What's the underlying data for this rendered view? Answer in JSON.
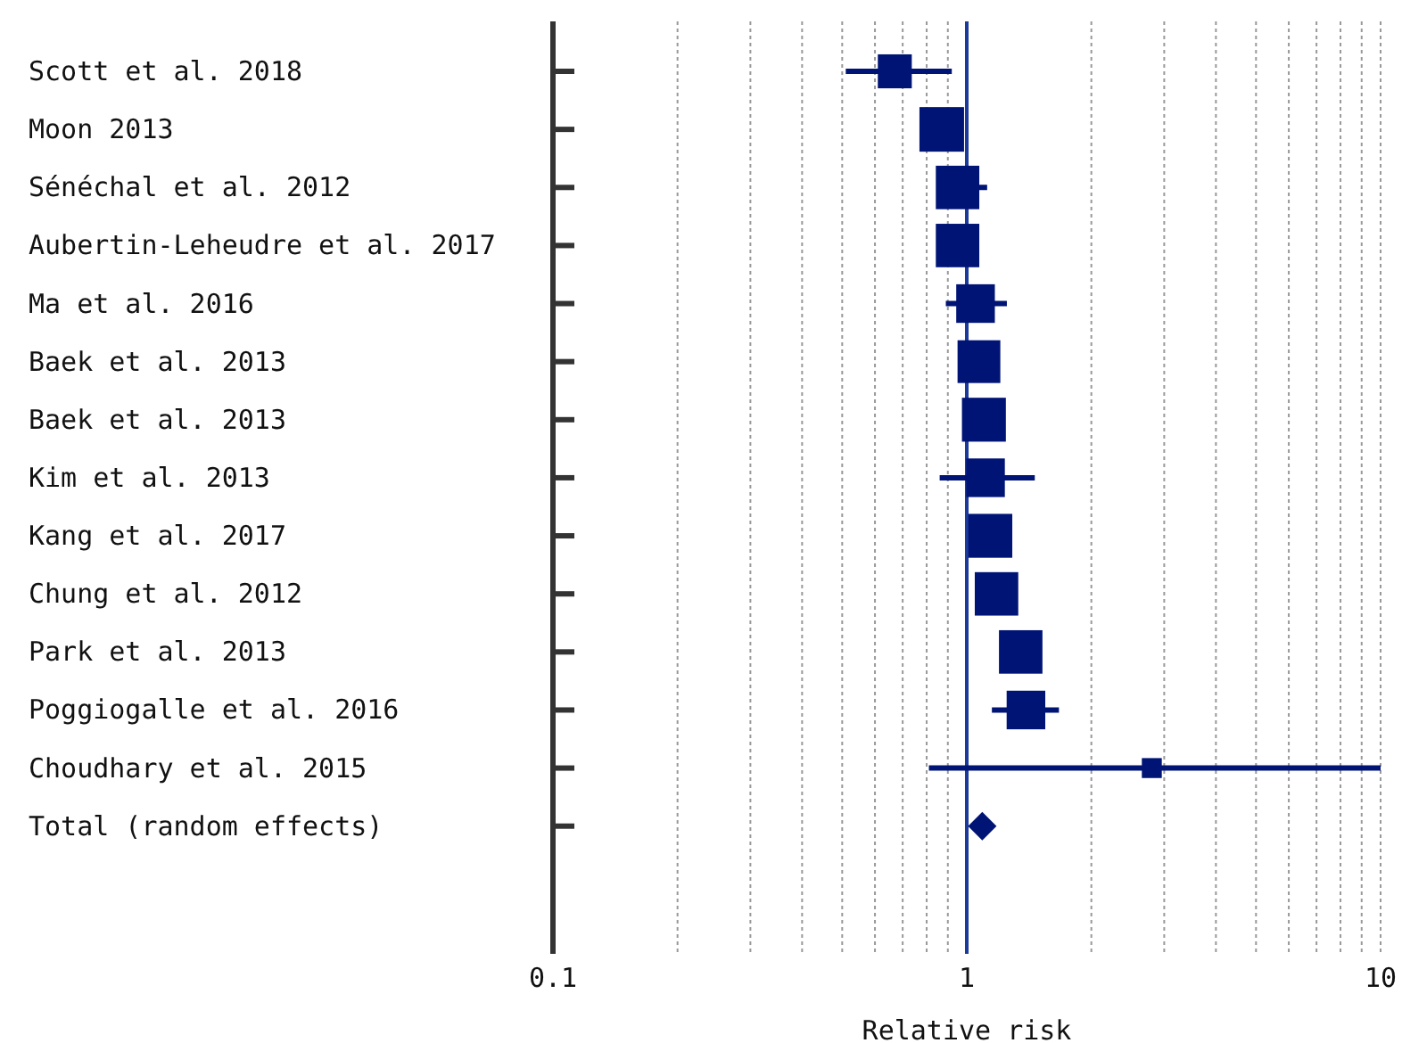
{
  "chart_data": {
    "type": "scatter",
    "orientation": "horizontal",
    "xlabel": "Relative risk",
    "log": "x",
    "grid": "x",
    "marker": "square",
    "categories": [
      "Scott et al. 2018",
      "Moon 2013",
      "Sénéchal et al. 2012",
      "Aubertin-Leheudre et al. 2017",
      "Ma et al. 2016",
      "Baek et al. 2013",
      "Baek et al. 2013",
      "Kim et al. 2013",
      "Kang et al. 2017",
      "Chung et al. 2012",
      "Park et al. 2013",
      "Poggiogalle et al. 2016",
      "Choudhary et al. 2015",
      "Total (random effects)"
    ],
    "xlim": [
      0.1,
      10
    ],
    "xticks": [
      0.1,
      {
        "value": 0.2,
        "label": null
      },
      {
        "value": 0.3,
        "label": null
      },
      {
        "value": 0.4,
        "label": null
      },
      {
        "value": 0.5,
        "label": null
      },
      {
        "value": 0.6,
        "label": null
      },
      {
        "value": 0.7,
        "label": null
      },
      {
        "value": 0.8,
        "label": null
      },
      {
        "value": 0.9,
        "label": null
      },
      1,
      {
        "value": 2,
        "label": null
      },
      {
        "value": 3,
        "label": null
      },
      {
        "value": 4,
        "label": null
      },
      {
        "value": 5,
        "label": null
      },
      {
        "value": 6,
        "label": null
      },
      {
        "value": 7,
        "label": null
      },
      {
        "value": 8,
        "label": null
      },
      {
        "value": 9,
        "label": null
      },
      10
    ],
    "ref_lines": [
      {
        "axis": "x",
        "value": 1,
        "color": "#1c3a9a"
      }
    ],
    "series": [
      {
        "color": "#001475",
        "values": [
          0.67,
          0.87,
          0.95,
          0.95,
          1.05,
          1.07,
          1.1,
          1.11,
          1.14,
          1.18,
          1.35,
          1.39,
          2.8,
          null
        ],
        "errors": [
          [
            0.51,
            0.92
          ],
          null,
          [
            0.95,
            1.12
          ],
          null,
          [
            0.89,
            1.25
          ],
          null,
          null,
          [
            0.86,
            1.46
          ],
          null,
          null,
          null,
          [
            1.15,
            1.67
          ],
          [
            0.81,
            10
          ],
          null
        ],
        "sizes": [
          0.58,
          1,
          0.95,
          0.95,
          0.75,
          0.92,
          0.97,
          0.75,
          0.97,
          0.95,
          0.95,
          0.75,
          0.2,
          null
        ]
      },
      {
        "color": "#001475",
        "marker": "diamond",
        "values": [
          null,
          null,
          null,
          null,
          null,
          null,
          null,
          null,
          null,
          null,
          null,
          null,
          null,
          1.09
        ],
        "errors": [
          null,
          null,
          null,
          null,
          null,
          null,
          null,
          null,
          null,
          null,
          null,
          null,
          null,
          [
            1.04,
            1.14
          ]
        ]
      }
    ]
  }
}
